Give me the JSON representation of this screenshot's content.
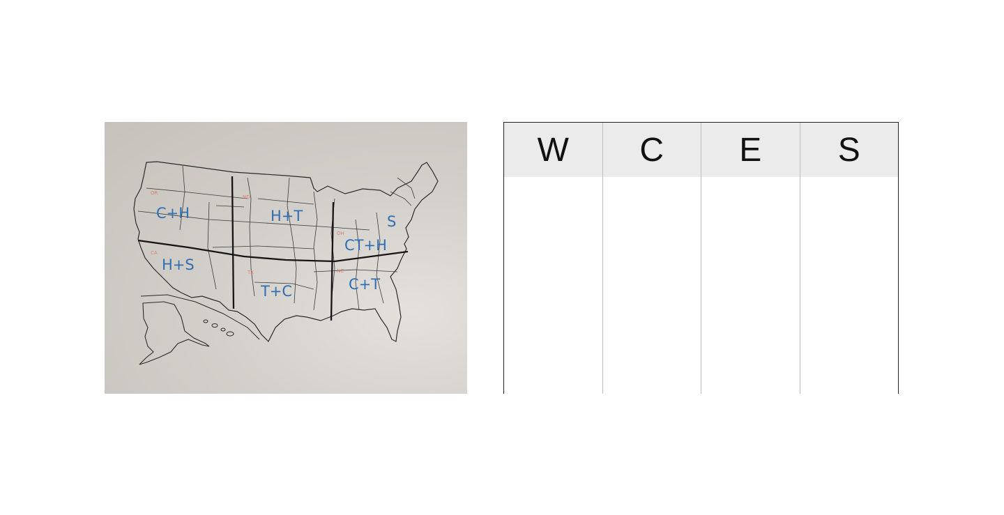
{
  "photo": {
    "labels": {
      "northwest": "C+H",
      "southwest": "H+S",
      "north_central": "H+T",
      "south_central": "T+C",
      "northeast_top": "S",
      "northeast": "CT+H",
      "southeast": "C+T"
    }
  },
  "chart": {
    "columns": [
      {
        "key": "w",
        "header": "W"
      },
      {
        "key": "c",
        "header": "C"
      },
      {
        "key": "e",
        "header": "E"
      },
      {
        "key": "s",
        "header": "S"
      }
    ]
  }
}
